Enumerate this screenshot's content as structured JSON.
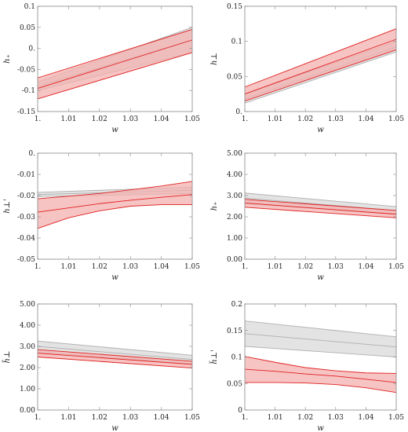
{
  "chart_data": [
    {
      "type": "line",
      "ylabel": "h₊",
      "xlabel": "w",
      "x": [
        1.0,
        1.05
      ],
      "xticks": [
        "1.",
        "1.01",
        "1.02",
        "1.03",
        "1.04",
        "1.05"
      ],
      "ylim": [
        -0.15,
        0.1
      ],
      "yticks": [
        "-0.15",
        "-0.1",
        "-0.05",
        "0.",
        "0.05",
        "0.1"
      ],
      "yticks_values": [
        -0.15,
        -0.1,
        -0.05,
        0.0,
        0.05,
        0.1
      ],
      "bands": [
        {
          "color": "#b0b0b0",
          "fill": "#e0e0e0",
          "lower": [
            -0.1,
            -0.01
          ],
          "center": [
            -0.09,
            0.02
          ],
          "upper": [
            -0.08,
            0.05
          ]
        },
        {
          "color": "#e02020",
          "fill": "#f4b0b0",
          "lower": [
            -0.12,
            -0.01
          ],
          "center": [
            -0.095,
            0.02
          ],
          "upper": [
            -0.07,
            0.045
          ]
        }
      ]
    },
    {
      "type": "line",
      "ylabel": "h⊥",
      "xlabel": "w",
      "x": [
        1.0,
        1.05
      ],
      "xticks": [
        "1.",
        "1.01",
        "1.02",
        "1.03",
        "1.04",
        "1.05"
      ],
      "ylim": [
        0.0,
        0.15
      ],
      "yticks": [
        "0.",
        "0.05",
        "0.1",
        "0.15"
      ],
      "yticks_values": [
        0.0,
        0.05,
        0.1,
        0.15
      ],
      "bands": [
        {
          "color": "#b0b0b0",
          "fill": "#e0e0e0",
          "lower": [
            0.012,
            0.085
          ],
          "center": [
            0.018,
            0.092
          ],
          "upper": [
            0.025,
            0.1
          ]
        },
        {
          "color": "#e02020",
          "fill": "#f4b0b0",
          "lower": [
            0.015,
            0.088
          ],
          "center": [
            0.025,
            0.103
          ],
          "upper": [
            0.035,
            0.118
          ]
        }
      ]
    },
    {
      "type": "line",
      "ylabel": "h⊥'",
      "xlabel": "w",
      "x": [
        1.0,
        1.01,
        1.02,
        1.03,
        1.04,
        1.05
      ],
      "xticks": [
        "1.",
        "1.01",
        "1.02",
        "1.03",
        "1.04",
        "1.05"
      ],
      "ylim": [
        -0.05,
        0.0
      ],
      "yticks": [
        "-0.05",
        "-0.04",
        "-0.03",
        "-0.02",
        "-0.01",
        "0."
      ],
      "yticks_values": [
        -0.05,
        -0.04,
        -0.03,
        -0.02,
        -0.01,
        0.0
      ],
      "bands": [
        {
          "color": "#b0b0b0",
          "fill": "#e0e0e0",
          "lower": [
            -0.0205,
            -0.0202,
            -0.0199,
            -0.0196,
            -0.0193,
            -0.019
          ],
          "center": [
            -0.0195,
            -0.0191,
            -0.0187,
            -0.0183,
            -0.0179,
            -0.0175
          ],
          "upper": [
            -0.0185,
            -0.018,
            -0.0175,
            -0.017,
            -0.0165,
            -0.016
          ]
        },
        {
          "color": "#e02020",
          "fill": "#f4b0b0",
          "lower": [
            -0.0355,
            -0.0305,
            -0.0272,
            -0.025,
            -0.0243,
            -0.0243
          ],
          "center": [
            -0.0278,
            -0.0258,
            -0.0238,
            -0.0222,
            -0.0208,
            -0.0195
          ],
          "upper": [
            -0.0215,
            -0.0203,
            -0.019,
            -0.0173,
            -0.0155,
            -0.0133
          ]
        }
      ]
    },
    {
      "type": "line",
      "ylabel": "h₊",
      "xlabel": "w",
      "x": [
        1.0,
        1.05
      ],
      "xticks": [
        "1.",
        "1.01",
        "1.02",
        "1.03",
        "1.04",
        "1.05"
      ],
      "ylim": [
        0.0,
        5.0
      ],
      "yticks": [
        "0.00",
        "1.00",
        "2.00",
        "3.00",
        "4.00",
        "5.00"
      ],
      "yticks_values": [
        0.0,
        1.0,
        2.0,
        3.0,
        4.0,
        5.0
      ],
      "bands": [
        {
          "color": "#b0b0b0",
          "fill": "#e0e0e0",
          "lower": [
            2.62,
            2.12
          ],
          "center": [
            2.88,
            2.3
          ],
          "upper": [
            3.12,
            2.48
          ]
        },
        {
          "color": "#e02020",
          "fill": "#f4b0b0",
          "lower": [
            2.45,
            1.95
          ],
          "center": [
            2.65,
            2.12
          ],
          "upper": [
            2.82,
            2.3
          ]
        }
      ]
    },
    {
      "type": "line",
      "ylabel": "h̃⊥",
      "xlabel": "w",
      "x": [
        1.0,
        1.05
      ],
      "xticks": [
        "1.",
        "1.01",
        "1.02",
        "1.03",
        "1.04",
        "1.05"
      ],
      "ylim": [
        0.0,
        5.0
      ],
      "yticks": [
        "0.00",
        "1.00",
        "2.00",
        "3.00",
        "4.00",
        "5.00"
      ],
      "yticks_values": [
        0.0,
        1.0,
        2.0,
        3.0,
        4.0,
        5.0
      ],
      "bands": [
        {
          "color": "#b0b0b0",
          "fill": "#e0e0e0",
          "lower": [
            2.72,
            2.18
          ],
          "center": [
            3.0,
            2.38
          ],
          "upper": [
            3.25,
            2.58
          ]
        },
        {
          "color": "#e02020",
          "fill": "#f4b0b0",
          "lower": [
            2.5,
            1.98
          ],
          "center": [
            2.68,
            2.15
          ],
          "upper": [
            2.85,
            2.3
          ]
        }
      ]
    },
    {
      "type": "line",
      "ylabel": "h̃⊥'",
      "xlabel": "w",
      "x": [
        1.0,
        1.01,
        1.02,
        1.03,
        1.04,
        1.05
      ],
      "xticks": [
        "1.",
        "1.01",
        "1.02",
        "1.03",
        "1.04",
        "1.05"
      ],
      "ylim": [
        0.0,
        0.2
      ],
      "yticks": [
        "0",
        "0.05",
        "0.1",
        "0.15",
        "0.2"
      ],
      "yticks_values": [
        0.0,
        0.05,
        0.1,
        0.15,
        0.2
      ],
      "bands": [
        {
          "color": "#b0b0b0",
          "fill": "#e0e0e0",
          "lower": [
            0.12,
            0.116,
            0.112,
            0.108,
            0.104,
            0.1
          ],
          "center": [
            0.144,
            0.139,
            0.134,
            0.129,
            0.124,
            0.119
          ],
          "upper": [
            0.168,
            0.162,
            0.156,
            0.15,
            0.144,
            0.138
          ]
        },
        {
          "color": "#e02020",
          "fill": "#f4b0b0",
          "lower": [
            0.052,
            0.052,
            0.051,
            0.048,
            0.042,
            0.033
          ],
          "center": [
            0.077,
            0.073,
            0.068,
            0.064,
            0.058,
            0.052
          ],
          "upper": [
            0.101,
            0.09,
            0.08,
            0.074,
            0.07,
            0.069
          ]
        }
      ]
    }
  ]
}
